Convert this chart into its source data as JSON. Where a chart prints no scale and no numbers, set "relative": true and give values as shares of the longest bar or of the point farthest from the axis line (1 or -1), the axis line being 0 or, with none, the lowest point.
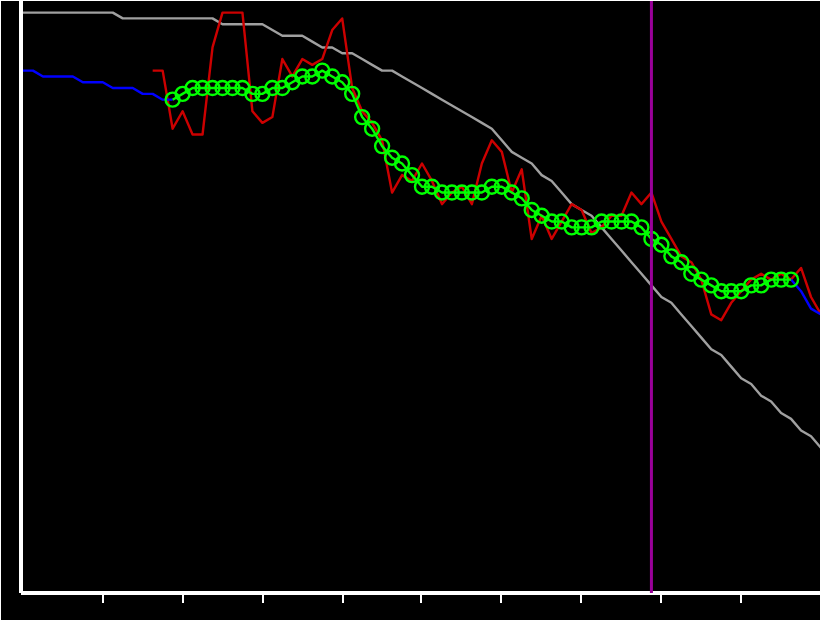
{
  "chart_data": {
    "type": "line",
    "relative": true,
    "grid": false,
    "categories": [
      null,
      null,
      null,
      null,
      null,
      null,
      null,
      null,
      null,
      null,
      null,
      null,
      null,
      null,
      null,
      null,
      null,
      null,
      null,
      null,
      null,
      null,
      null,
      null,
      null,
      null,
      null,
      null,
      null,
      null,
      null,
      null,
      null,
      null,
      null,
      null,
      null,
      null,
      null,
      null,
      null,
      null,
      null,
      null,
      null,
      null,
      null,
      null,
      null,
      null,
      null,
      null,
      null,
      null,
      null,
      null,
      null,
      null,
      null,
      null,
      null,
      null,
      null,
      null,
      null,
      null,
      null,
      null,
      null,
      null,
      null,
      null,
      null,
      null,
      null,
      null,
      null,
      null,
      null,
      null,
      null
    ],
    "series": [
      {
        "color": "#a0a0a0",
        "values": [
          1.0,
          1.0,
          1.0,
          1.0,
          1.0,
          1.0,
          1.0,
          1.0,
          1.0,
          1.0,
          0.99,
          0.99,
          0.99,
          0.99,
          0.99,
          0.99,
          0.99,
          0.99,
          0.99,
          0.99,
          0.98,
          0.98,
          0.98,
          0.98,
          0.98,
          0.97,
          0.96,
          0.96,
          0.96,
          0.95,
          0.94,
          0.94,
          0.93,
          0.93,
          0.92,
          0.91,
          0.9,
          0.9,
          0.89,
          0.88,
          0.87,
          0.86,
          0.85,
          0.84,
          0.83,
          0.82,
          0.81,
          0.8,
          0.78,
          0.76,
          0.75,
          0.74,
          0.72,
          0.71,
          0.69,
          0.67,
          0.66,
          0.65,
          0.63,
          0.61,
          0.59,
          0.57,
          0.55,
          0.53,
          0.51,
          0.5,
          0.48,
          0.46,
          0.44,
          0.42,
          0.41,
          0.39,
          0.37,
          0.36,
          0.34,
          0.33,
          0.31,
          0.3,
          0.28,
          0.27,
          0.25
        ]
      },
      {
        "color": "#cc0000",
        "values": [
          null,
          null,
          null,
          null,
          null,
          null,
          null,
          null,
          null,
          null,
          null,
          null,
          null,
          0.9,
          0.9,
          0.8,
          0.83,
          0.79,
          0.79,
          0.94,
          1.0,
          1.0,
          1.0,
          0.83,
          0.81,
          0.82,
          0.92,
          0.89,
          0.92,
          0.91,
          0.92,
          0.97,
          0.99,
          0.87,
          0.83,
          0.81,
          0.78,
          0.69,
          0.72,
          0.71,
          0.74,
          0.71,
          0.67,
          0.69,
          0.7,
          0.67,
          0.74,
          0.78,
          0.76,
          0.69,
          0.73,
          0.61,
          0.65,
          0.61,
          0.64,
          0.67,
          0.66,
          0.62,
          0.63,
          0.65,
          0.65,
          0.69,
          0.67,
          0.69,
          0.64,
          0.61,
          0.58,
          0.57,
          0.54,
          0.48,
          0.47,
          0.5,
          0.52,
          0.54,
          0.55,
          0.54,
          0.55,
          0.54,
          0.56,
          0.51,
          0.48
        ]
      },
      {
        "color": "#0000ff",
        "values": [
          0.9,
          0.9,
          0.89,
          0.89,
          0.89,
          0.89,
          0.88,
          0.88,
          0.88,
          0.87,
          0.87,
          0.87,
          0.86,
          0.86,
          0.85,
          0.85,
          null,
          null,
          null,
          null,
          null,
          null,
          null,
          null,
          null,
          null,
          null,
          null,
          null,
          null,
          null,
          null,
          null,
          null,
          null,
          null,
          null,
          null,
          null,
          null,
          null,
          null,
          null,
          null,
          null,
          null,
          null,
          null,
          null,
          null,
          null,
          null,
          null,
          null,
          null,
          null,
          null,
          null,
          null,
          null,
          null,
          null,
          null,
          null,
          null,
          null,
          null,
          null,
          null,
          null,
          null,
          null,
          null,
          null,
          null,
          null,
          null,
          0.54,
          0.52,
          0.49,
          0.48
        ]
      },
      {
        "marker": "circle",
        "color": "#00ff00",
        "values": [
          null,
          null,
          null,
          null,
          null,
          null,
          null,
          null,
          null,
          null,
          null,
          null,
          null,
          null,
          null,
          0.85,
          0.86,
          0.87,
          0.87,
          0.87,
          0.87,
          0.87,
          0.87,
          0.86,
          0.86,
          0.87,
          0.87,
          0.88,
          0.89,
          0.89,
          0.9,
          0.89,
          0.88,
          0.86,
          0.82,
          0.8,
          0.77,
          0.75,
          0.74,
          0.72,
          0.7,
          0.7,
          0.69,
          0.69,
          0.69,
          0.69,
          0.69,
          0.7,
          0.7,
          0.69,
          0.68,
          0.66,
          0.65,
          0.64,
          0.64,
          0.63,
          0.63,
          0.63,
          0.64,
          0.64,
          0.64,
          0.64,
          0.63,
          0.61,
          0.6,
          0.58,
          0.57,
          0.55,
          0.54,
          0.53,
          0.52,
          0.52,
          0.52,
          0.53,
          0.53,
          0.54,
          0.54,
          0.54,
          null,
          null,
          null
        ]
      }
    ]
  }
}
